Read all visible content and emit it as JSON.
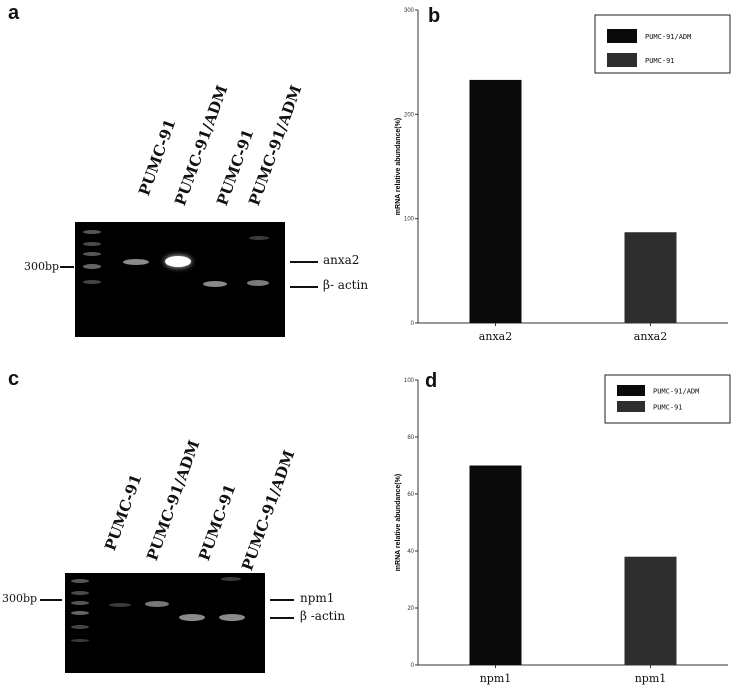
{
  "panels": {
    "a": {
      "letter": "a",
      "lanes": [
        "PUMC-91",
        "PUMC-91/ADM",
        "PUMC-91",
        "PUMC-91/ADM"
      ],
      "marker": "300bp",
      "bands": [
        "anxa2",
        "β- actin"
      ]
    },
    "b": {
      "letter": "b",
      "legend": [
        "PUMC-91/ADM",
        "PUMC-91"
      ]
    },
    "c": {
      "letter": "c",
      "lanes": [
        "PUMC-91",
        "PUMC-91/ADM",
        "PUMC-91",
        "PUMC-91/ADM"
      ],
      "marker": "300bp",
      "bands": [
        "npm1",
        "β -actin"
      ]
    },
    "d": {
      "letter": "d",
      "legend": [
        "PUMC-91/ADM",
        "PUMC-91"
      ]
    }
  },
  "chart_data": [
    {
      "type": "bar",
      "panel": "b",
      "categories": [
        "anxa2",
        "anxa2"
      ],
      "values": [
        233,
        87
      ],
      "colors": [
        "#0a0a0a",
        "#2e2e2e"
      ],
      "ylabel": "mRNA relative abundance(%)",
      "ylim": [
        0,
        300
      ],
      "yticks": [
        0,
        100,
        200,
        300
      ],
      "legend": [
        "PUMC-91/ADM",
        "PUMC-91"
      ],
      "legend_position": "top-right"
    },
    {
      "type": "bar",
      "panel": "d",
      "categories": [
        "npm1",
        "npm1"
      ],
      "values": [
        70,
        38
      ],
      "colors": [
        "#0a0a0a",
        "#2e2e2e"
      ],
      "ylabel": "mRNA relative abundance(%)",
      "ylim": [
        0,
        100
      ],
      "yticks": [
        0,
        20,
        40,
        60,
        80,
        100
      ],
      "legend": [
        "PUMC-91/ADM",
        "PUMC-91"
      ],
      "legend_position": "top-right"
    }
  ]
}
